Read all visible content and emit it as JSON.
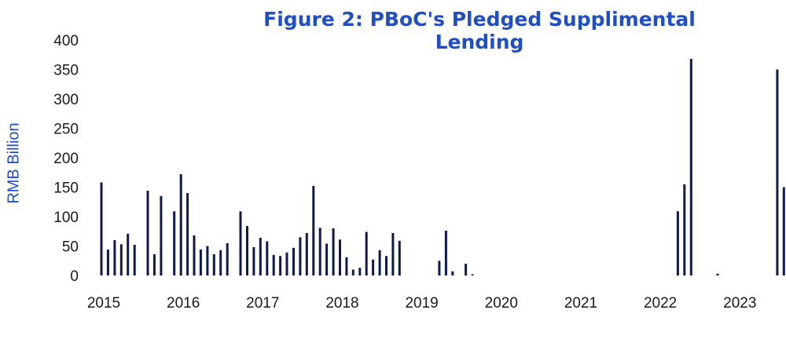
{
  "chart_data": {
    "type": "bar",
    "title": "Figure 2: PBoC's Pledged Supplimental Lending",
    "xlabel": "",
    "ylabel": "RMB Billion",
    "ylim": [
      0,
      400
    ],
    "yticks": [
      "0",
      "50",
      "100",
      "150",
      "200",
      "250",
      "300",
      "350",
      "400"
    ],
    "xticks": [
      "2015",
      "2016",
      "2017",
      "2018",
      "2019",
      "2020",
      "2021",
      "2022",
      "2023"
    ],
    "bar_color": "#0f1a4a",
    "title_color": "#1f4fc3",
    "grid": false,
    "categories": [
      "2015-01",
      "2015-02",
      "2015-03",
      "2015-04",
      "2015-05",
      "2015-06",
      "2015-07",
      "2015-08",
      "2015-09",
      "2015-10",
      "2015-11",
      "2015-12",
      "2016-01",
      "2016-02",
      "2016-03",
      "2016-04",
      "2016-05",
      "2016-06",
      "2016-07",
      "2016-08",
      "2016-09",
      "2016-10",
      "2016-11",
      "2016-12",
      "2017-01",
      "2017-02",
      "2017-03",
      "2017-04",
      "2017-05",
      "2017-06",
      "2017-07",
      "2017-08",
      "2017-09",
      "2017-10",
      "2017-11",
      "2017-12",
      "2018-01",
      "2018-02",
      "2018-03",
      "2018-04",
      "2018-05",
      "2018-06",
      "2018-07",
      "2018-08",
      "2018-09",
      "2018-10",
      "2018-11",
      "2018-12",
      "2019-01",
      "2019-02",
      "2019-03",
      "2019-04",
      "2019-05",
      "2019-06",
      "2019-07",
      "2019-08",
      "2019-09",
      "2019-10",
      "2019-11",
      "2019-12",
      "2020-01",
      "2020-02",
      "2020-03",
      "2020-04",
      "2020-05",
      "2020-06",
      "2020-07",
      "2020-08",
      "2020-09",
      "2020-10",
      "2020-11",
      "2020-12",
      "2021-01",
      "2021-02",
      "2021-03",
      "2021-04",
      "2021-05",
      "2021-06",
      "2021-07",
      "2021-08",
      "2021-09",
      "2021-10",
      "2021-11",
      "2021-12",
      "2022-01",
      "2022-02",
      "2022-03",
      "2022-04",
      "2022-05",
      "2022-06",
      "2022-07",
      "2022-08",
      "2022-09",
      "2022-10",
      "2022-11",
      "2022-12",
      "2023-01",
      "2023-02",
      "2023-03",
      "2023-04",
      "2023-05",
      "2023-06",
      "2023-07",
      "2023-08"
    ],
    "values": [
      158,
      44,
      60,
      53,
      71,
      52,
      0,
      144,
      36,
      135,
      0,
      109,
      172,
      140,
      68,
      44,
      50,
      36,
      43,
      55,
      0,
      109,
      84,
      48,
      64,
      58,
      35,
      33,
      39,
      47,
      65,
      72,
      152,
      81,
      54,
      80,
      61,
      31,
      10,
      13,
      74,
      27,
      43,
      33,
      72,
      59,
      0,
      0,
      0,
      0,
      0,
      25,
      76,
      7,
      0,
      20,
      2,
      0,
      0,
      0,
      0,
      0,
      0,
      0,
      0,
      0,
      0,
      0,
      0,
      0,
      0,
      0,
      0,
      0,
      0,
      0,
      0,
      0,
      0,
      0,
      0,
      0,
      0,
      0,
      0,
      0,
      0,
      109,
      155,
      368,
      0,
      0,
      0,
      3,
      0,
      0,
      0,
      0,
      0,
      0,
      0,
      0,
      350,
      150
    ]
  }
}
